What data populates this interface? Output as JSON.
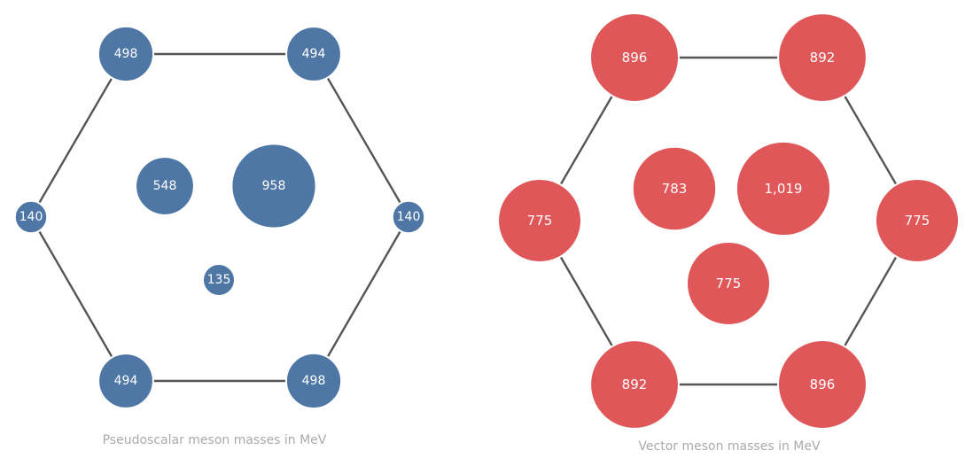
{
  "colors": {
    "pseudoscalar": "#4e77a6",
    "vector": "#e0575a",
    "edge": "#555555",
    "caption": "#aaaaaa"
  },
  "panels": [
    {
      "id": "pseudoscalar",
      "caption": "Pseudoscalar meson masses in MeV",
      "nodes": [
        {
          "id": "top-left",
          "label": "498",
          "mass": 498
        },
        {
          "id": "top-right",
          "label": "494",
          "mass": 494
        },
        {
          "id": "left",
          "label": "140",
          "mass": 140
        },
        {
          "id": "right",
          "label": "140",
          "mass": 140
        },
        {
          "id": "bottom-left",
          "label": "494",
          "mass": 494
        },
        {
          "id": "bottom-right",
          "label": "498",
          "mass": 498
        },
        {
          "id": "center-left",
          "label": "548",
          "mass": 548
        },
        {
          "id": "center-right",
          "label": "958",
          "mass": 958
        },
        {
          "id": "center-bottom",
          "label": "135",
          "mass": 135
        }
      ]
    },
    {
      "id": "vector",
      "caption": "Vector meson masses in MeV",
      "nodes": [
        {
          "id": "top-left",
          "label": "896",
          "mass": 896
        },
        {
          "id": "top-right",
          "label": "892",
          "mass": 892
        },
        {
          "id": "left",
          "label": "775",
          "mass": 775
        },
        {
          "id": "right",
          "label": "775",
          "mass": 775
        },
        {
          "id": "bottom-left",
          "label": "892",
          "mass": 892
        },
        {
          "id": "bottom-right",
          "label": "896",
          "mass": 896
        },
        {
          "id": "center-left",
          "label": "783",
          "mass": 783
        },
        {
          "id": "center-right",
          "label": "1,019",
          "mass": 1019
        },
        {
          "id": "center-bottom",
          "label": "775",
          "mass": 775
        }
      ]
    }
  ]
}
